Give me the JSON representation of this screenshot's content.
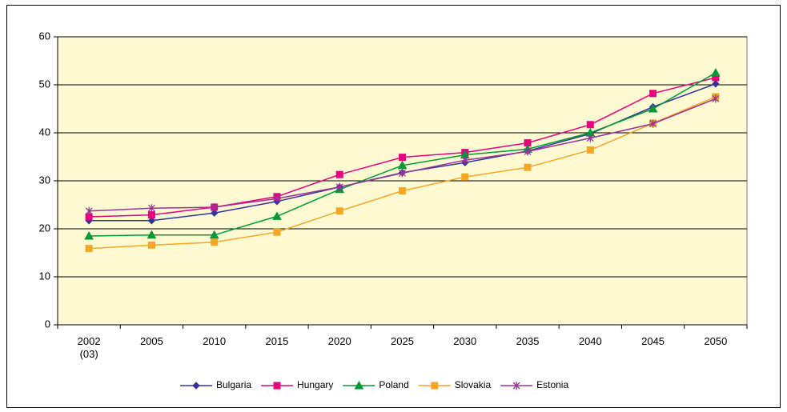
{
  "chart_data": {
    "type": "line",
    "categories": [
      "2002\n(03)",
      "2005",
      "2010",
      "2015",
      "2020",
      "2025",
      "2030",
      "2035",
      "2040",
      "2045",
      "2050"
    ],
    "series": [
      {
        "name": "Bulgaria",
        "color": "#333399",
        "marker": "diamond",
        "values": [
          21.7,
          21.7,
          23.3,
          25.7,
          28.7,
          31.7,
          33.8,
          36.2,
          39.8,
          45.4,
          50.2
        ]
      },
      {
        "name": "Hungary",
        "color": "#e6007e",
        "marker": "square",
        "values": [
          22.5,
          22.9,
          24.5,
          26.7,
          31.3,
          34.9,
          35.9,
          37.9,
          41.7,
          48.2,
          51.5
        ]
      },
      {
        "name": "Poland",
        "color": "#009933",
        "marker": "triangle",
        "values": [
          18.5,
          18.7,
          18.7,
          22.6,
          28.2,
          33.2,
          35.4,
          36.6,
          40.0,
          45.0,
          52.5
        ]
      },
      {
        "name": "Slovakia",
        "color": "#f5a623",
        "marker": "square",
        "values": [
          15.9,
          16.6,
          17.2,
          19.3,
          23.7,
          27.9,
          30.8,
          32.8,
          36.4,
          42.0,
          47.5
        ]
      },
      {
        "name": "Estonia",
        "color": "#993399",
        "marker": "asterisk",
        "values": [
          23.7,
          24.3,
          24.5,
          26.3,
          28.7,
          31.6,
          34.3,
          36.1,
          38.9,
          41.9,
          47.1
        ]
      }
    ],
    "ylim": [
      0,
      60
    ],
    "yticks": [
      0,
      10,
      20,
      30,
      40,
      50,
      60
    ],
    "grid": true,
    "plot_background": "#fdf9d2",
    "legend": "bottom"
  }
}
